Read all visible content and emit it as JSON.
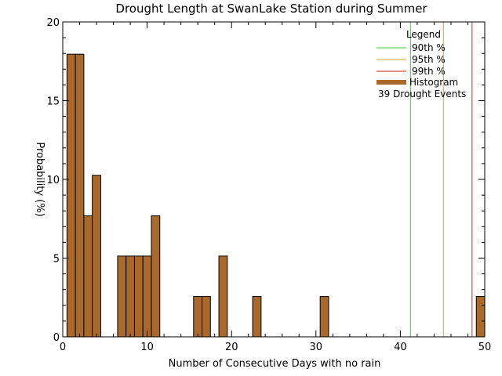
{
  "chart_data": {
    "type": "bar",
    "title": "Drought Length at SwanLake Station during Summer",
    "xlabel": "Number of Consecutive Days with no rain",
    "ylabel": "Probability (%)",
    "xlim": [
      0,
      50
    ],
    "ylim": [
      0,
      20
    ],
    "xticks": [
      0,
      10,
      20,
      30,
      40,
      50
    ],
    "yticks": [
      0,
      5,
      10,
      15,
      20
    ],
    "bin_width": 1,
    "bars": [
      {
        "x": 1,
        "value": 17.95
      },
      {
        "x": 2,
        "value": 17.95
      },
      {
        "x": 3,
        "value": 7.69
      },
      {
        "x": 4,
        "value": 10.26
      },
      {
        "x": 7,
        "value": 5.13
      },
      {
        "x": 8,
        "value": 5.13
      },
      {
        "x": 9,
        "value": 5.13
      },
      {
        "x": 10,
        "value": 5.13
      },
      {
        "x": 11,
        "value": 7.69
      },
      {
        "x": 16,
        "value": 2.56
      },
      {
        "x": 17,
        "value": 2.56
      },
      {
        "x": 19,
        "value": 5.13
      },
      {
        "x": 23,
        "value": 2.56
      },
      {
        "x": 31,
        "value": 2.56
      },
      {
        "x": 49.5,
        "value": 2.56
      }
    ],
    "percentile_lines": [
      {
        "label": "90th %",
        "x": 41.2,
        "color": "#33cc33"
      },
      {
        "label": "95th %",
        "x": 45.1,
        "color": "#e0a020"
      },
      {
        "label": "99th %",
        "x": 48.5,
        "color": "#cc2222"
      }
    ],
    "bar_color": "#a8692a",
    "legend": {
      "title": "Legend",
      "histogram_label": "Histogram",
      "events_text": "39 Drought Events",
      "placement": "top-right"
    },
    "grid": false
  }
}
